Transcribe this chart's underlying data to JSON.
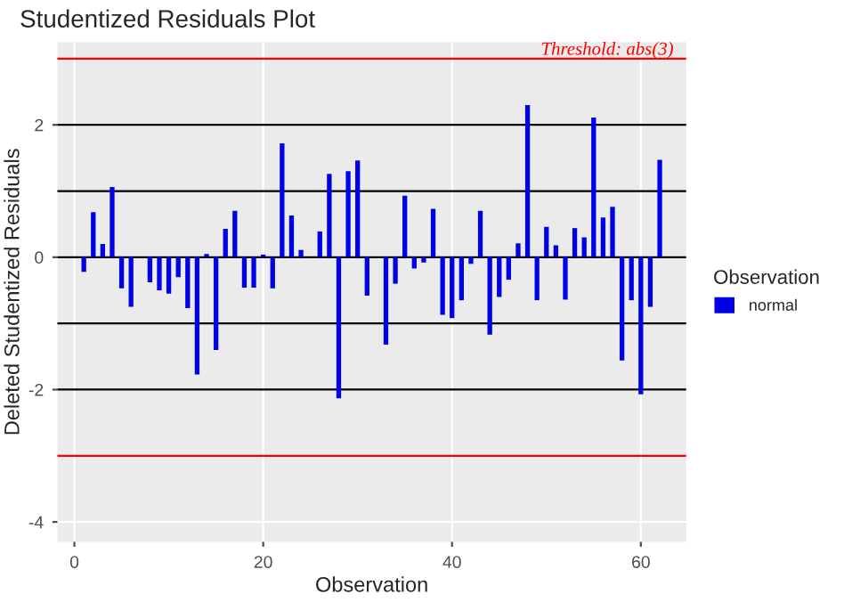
{
  "chart_data": {
    "type": "bar",
    "title": "Studentized Residuals Plot",
    "xlabel": "Observation",
    "ylabel": "Deleted Studentized Residuals",
    "legend_title": "Observation",
    "x": [
      1,
      2,
      3,
      4,
      5,
      6,
      7,
      8,
      9,
      10,
      11,
      12,
      13,
      14,
      15,
      16,
      17,
      18,
      19,
      20,
      21,
      22,
      23,
      24,
      25,
      26,
      27,
      28,
      29,
      30,
      31,
      32,
      33,
      34,
      35,
      36,
      37,
      38,
      39,
      40,
      41,
      42,
      43,
      44,
      45,
      46,
      47,
      48,
      49,
      50,
      51,
      52,
      53,
      54,
      55,
      56,
      57,
      58,
      59,
      60,
      61,
      62
    ],
    "series": [
      {
        "name": "normal",
        "color": "#0000e6",
        "values": [
          -0.22,
          0.68,
          0.2,
          1.06,
          -0.47,
          -0.75,
          null,
          -0.38,
          -0.5,
          -0.55,
          -0.3,
          -0.77,
          -1.77,
          0.05,
          -1.4,
          0.43,
          0.7,
          -0.46,
          -0.46,
          0.04,
          -0.47,
          1.72,
          0.63,
          0.11,
          null,
          0.39,
          1.26,
          -2.13,
          1.3,
          1.46,
          -0.58,
          null,
          -1.32,
          -0.4,
          0.93,
          -0.17,
          -0.08,
          0.73,
          -0.87,
          -0.92,
          -0.65,
          -0.1,
          0.7,
          -1.17,
          -0.6,
          -0.34,
          0.21,
          2.3,
          -0.65,
          0.46,
          0.18,
          -0.64,
          0.44,
          0.3,
          2.11,
          0.6,
          0.76,
          -1.56,
          -0.65,
          -2.07,
          -0.75,
          1.47
        ]
      }
    ],
    "xlim": [
      -1.8,
      64.8
    ],
    "ylim": [
      -4.3,
      3.25
    ],
    "xticks": [
      0,
      20,
      40,
      60
    ],
    "yticks": [
      -4,
      -2,
      0,
      2
    ],
    "ref_lines": [
      {
        "axis": "y",
        "value": 3,
        "label": "Threshold: abs(3)",
        "color": "#ff0000"
      },
      {
        "axis": "y",
        "value": -3,
        "color": "#ff0000"
      },
      {
        "axis": "y",
        "value": 2,
        "color": "#000000"
      },
      {
        "axis": "y",
        "value": 1,
        "color": "#000000"
      },
      {
        "axis": "y",
        "value": 0,
        "color": "#000000"
      },
      {
        "axis": "y",
        "value": -1,
        "color": "#000000"
      },
      {
        "axis": "y",
        "value": -2,
        "color": "#000000"
      }
    ],
    "grid": true,
    "legend": "right"
  }
}
